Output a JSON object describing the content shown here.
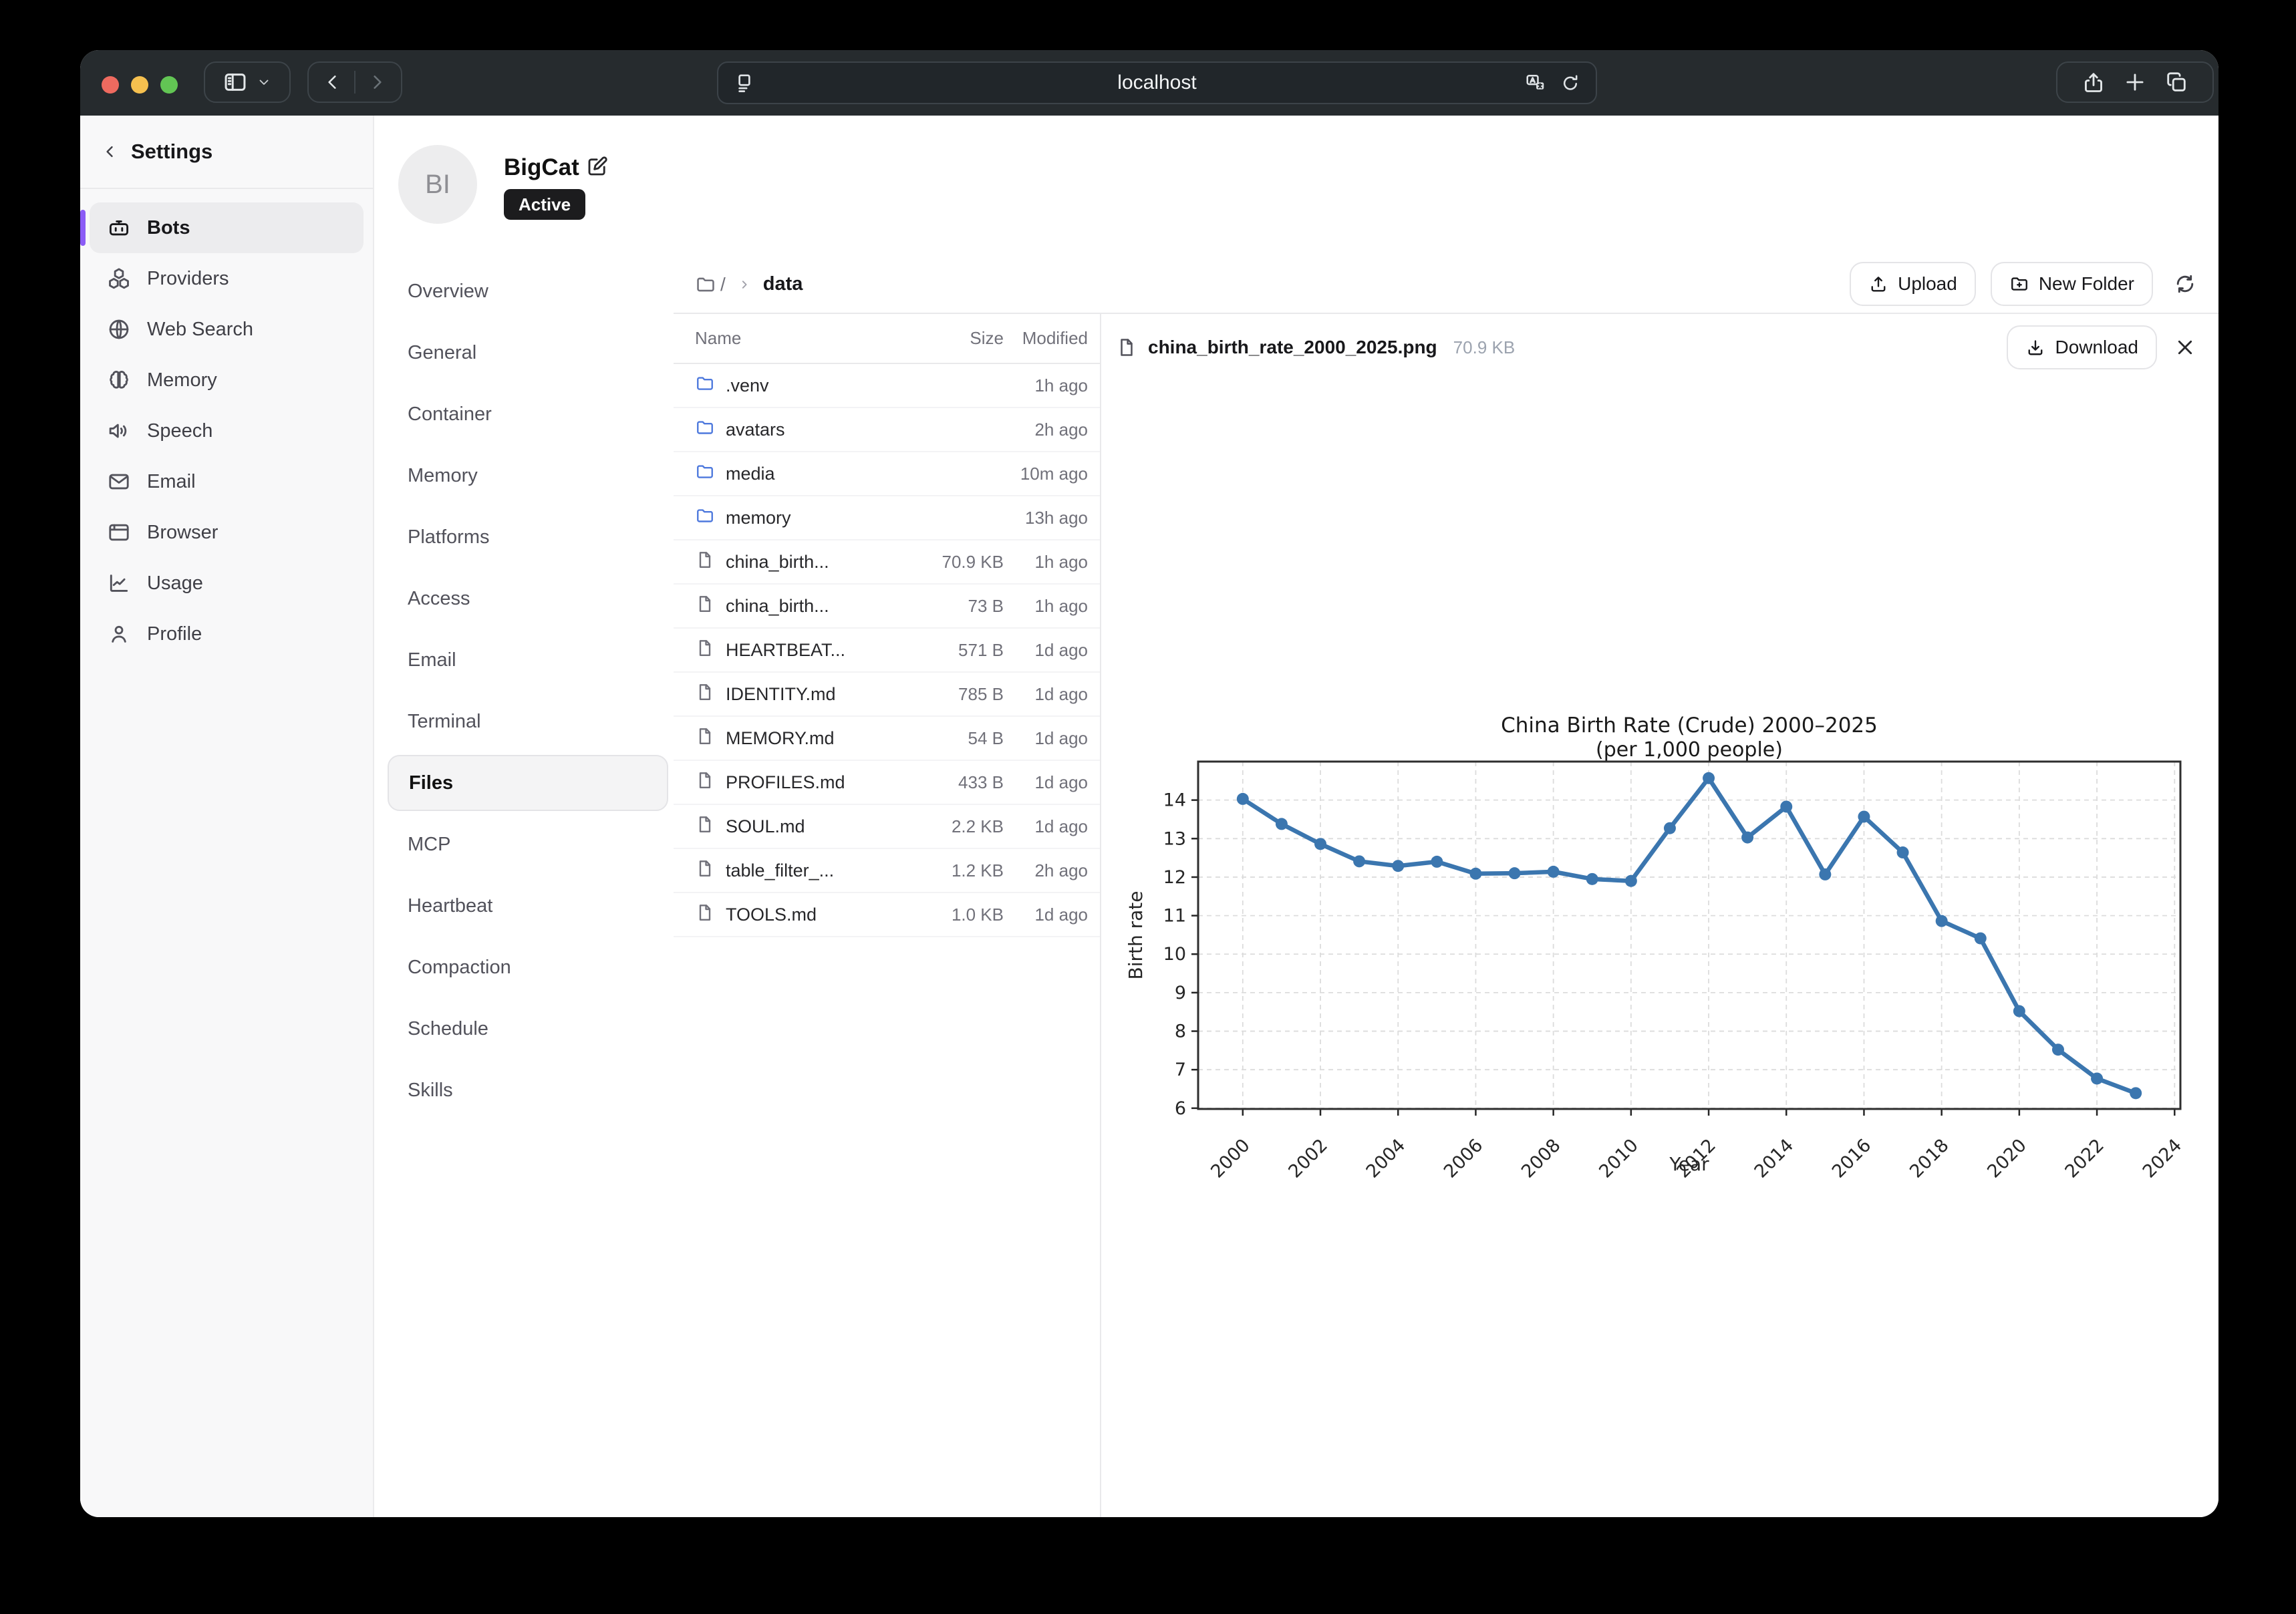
{
  "colors": {
    "accent": "#8b5cf6",
    "folder": "#4e79dd",
    "chart_line": "#3b76af",
    "badge_bg": "#1c1c1e",
    "traffic_lights": [
      "#ee6a5f",
      "#f5c04f",
      "#62c554"
    ]
  },
  "browser": {
    "url": "localhost"
  },
  "sidebar": {
    "title": "Settings",
    "items": [
      {
        "label": "Bots",
        "icon": "robot",
        "active": true
      },
      {
        "label": "Providers",
        "icon": "blocks",
        "active": false
      },
      {
        "label": "Web Search",
        "icon": "globe",
        "active": false
      },
      {
        "label": "Memory",
        "icon": "brain",
        "active": false
      },
      {
        "label": "Speech",
        "icon": "speaker",
        "active": false
      },
      {
        "label": "Email",
        "icon": "envelope",
        "active": false
      },
      {
        "label": "Browser",
        "icon": "window",
        "active": false
      },
      {
        "label": "Usage",
        "icon": "chart",
        "active": false
      },
      {
        "label": "Profile",
        "icon": "person",
        "active": false
      }
    ]
  },
  "bot": {
    "name": "BigCat",
    "initials": "BI",
    "status": "Active"
  },
  "nav": {
    "items": [
      "Overview",
      "General",
      "Container",
      "Memory",
      "Platforms",
      "Access",
      "Email",
      "Terminal",
      "Files",
      "MCP",
      "Heartbeat",
      "Compaction",
      "Schedule",
      "Skills"
    ],
    "active": "Files"
  },
  "toolbar": {
    "breadcrumb_root": "/",
    "breadcrumb_current": "data",
    "upload_label": "Upload",
    "new_folder_label": "New Folder"
  },
  "file_table": {
    "columns": [
      "Name",
      "Size",
      "Modified"
    ],
    "rows": [
      {
        "name": ".venv",
        "type": "folder",
        "size": "",
        "modified": "1h ago"
      },
      {
        "name": "avatars",
        "type": "folder",
        "size": "",
        "modified": "2h ago"
      },
      {
        "name": "media",
        "type": "folder",
        "size": "",
        "modified": "10m ago"
      },
      {
        "name": "memory",
        "type": "folder",
        "size": "",
        "modified": "13h ago"
      },
      {
        "name": "china_birth...",
        "type": "file",
        "size": "70.9 KB",
        "modified": "1h ago"
      },
      {
        "name": "china_birth...",
        "type": "file",
        "size": "73 B",
        "modified": "1h ago"
      },
      {
        "name": "HEARTBEAT...",
        "type": "file",
        "size": "571 B",
        "modified": "1d ago"
      },
      {
        "name": "IDENTITY.md",
        "type": "file",
        "size": "785 B",
        "modified": "1d ago"
      },
      {
        "name": "MEMORY.md",
        "type": "file",
        "size": "54 B",
        "modified": "1d ago"
      },
      {
        "name": "PROFILES.md",
        "type": "file",
        "size": "433 B",
        "modified": "1d ago"
      },
      {
        "name": "SOUL.md",
        "type": "file",
        "size": "2.2 KB",
        "modified": "1d ago"
      },
      {
        "name": "table_filter_...",
        "type": "file",
        "size": "1.2 KB",
        "modified": "2h ago"
      },
      {
        "name": "TOOLS.md",
        "type": "file",
        "size": "1.0 KB",
        "modified": "1d ago"
      }
    ]
  },
  "preview": {
    "filename": "china_birth_rate_2000_2025.png",
    "filesize": "70.9 KB",
    "download_label": "Download"
  },
  "chart_data": {
    "type": "line",
    "title": "China Birth Rate (Crude) 2000–2025",
    "subtitle": "(per 1,000 people)",
    "xlabel": "Year",
    "ylabel": "Birth rate",
    "x": [
      2000,
      2001,
      2002,
      2003,
      2004,
      2005,
      2006,
      2007,
      2008,
      2009,
      2010,
      2011,
      2012,
      2013,
      2014,
      2015,
      2016,
      2017,
      2018,
      2019,
      2020,
      2021,
      2022,
      2023
    ],
    "values": [
      14.03,
      13.38,
      12.86,
      12.41,
      12.29,
      12.4,
      12.09,
      12.1,
      12.14,
      11.95,
      11.9,
      13.27,
      14.57,
      13.03,
      13.83,
      12.07,
      13.57,
      12.64,
      10.86,
      10.41,
      8.52,
      7.52,
      6.77,
      6.39
    ],
    "xticks": [
      2000,
      2002,
      2004,
      2006,
      2008,
      2010,
      2012,
      2014,
      2016,
      2018,
      2020,
      2022,
      2024
    ],
    "yticks": [
      6,
      7,
      8,
      9,
      10,
      11,
      12,
      13,
      14
    ],
    "xlim": [
      1998.85,
      2024.15
    ],
    "ylim": [
      5.98,
      15.0
    ],
    "grid": true,
    "legend": null,
    "line_color": "#3b76af"
  }
}
